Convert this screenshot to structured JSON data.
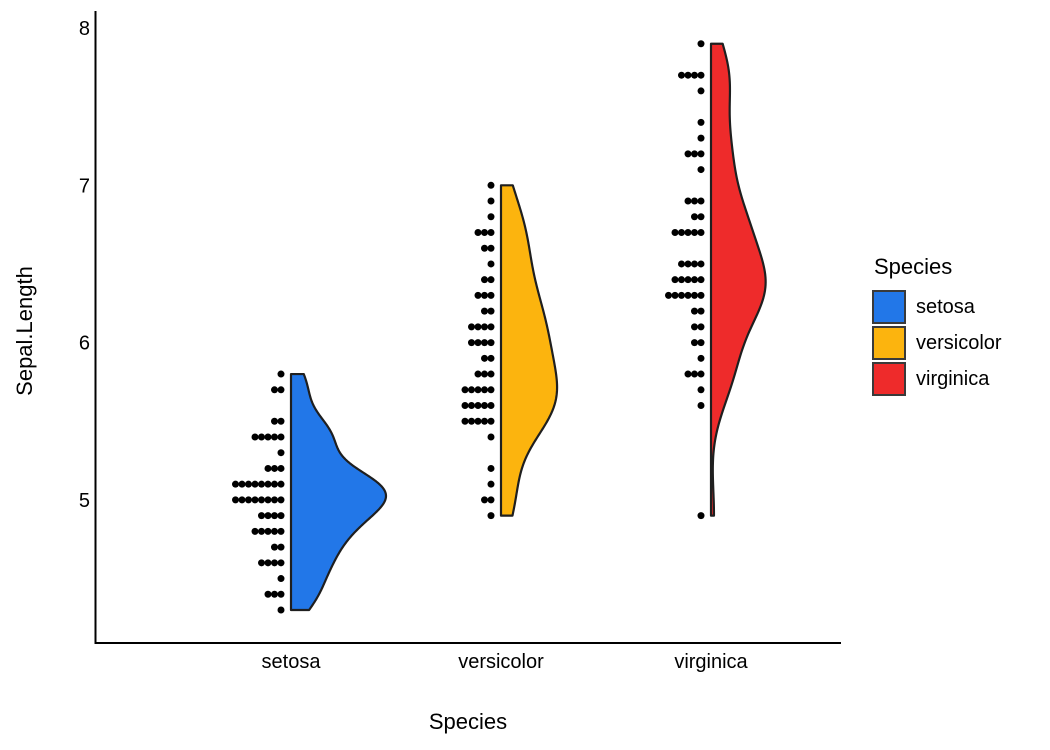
{
  "chart_data": {
    "type": "raincloud (half-violin + stacked dot plot)",
    "title": "",
    "xlabel": "Species",
    "ylabel": "Sepal.Length",
    "categories": [
      "setosa",
      "versicolor",
      "virginica"
    ],
    "y_ticks": [
      5,
      6,
      7,
      8
    ],
    "ylim": [
      4.1,
      8.1
    ],
    "grid": false,
    "dot_color": "#000000",
    "outline_color": "#1f1f1f",
    "axis_color": "#000000",
    "legend": {
      "title": "Species",
      "position": "right",
      "entries": [
        "setosa",
        "versicolor",
        "virginica"
      ]
    },
    "series": [
      {
        "name": "setosa",
        "color": "#2277E8",
        "values": [
          5.1,
          4.9,
          4.7,
          4.6,
          5.0,
          5.4,
          4.6,
          5.0,
          4.4,
          4.9,
          5.4,
          4.8,
          4.8,
          4.3,
          5.8,
          5.7,
          5.4,
          5.1,
          5.7,
          5.1,
          5.4,
          5.1,
          4.6,
          5.1,
          4.8,
          5.0,
          5.0,
          5.2,
          5.2,
          4.7,
          4.8,
          5.4,
          5.2,
          5.5,
          4.9,
          5.0,
          5.5,
          4.9,
          4.4,
          5.1,
          5.0,
          4.5,
          4.4,
          5.0,
          5.1,
          4.8,
          5.1,
          4.6,
          5.3,
          5.0
        ]
      },
      {
        "name": "versicolor",
        "color": "#FCB40E",
        "values": [
          7.0,
          6.4,
          6.9,
          5.5,
          6.5,
          5.7,
          6.3,
          4.9,
          6.6,
          5.2,
          5.0,
          5.9,
          6.0,
          6.1,
          5.6,
          6.7,
          5.6,
          5.8,
          6.2,
          5.6,
          5.9,
          6.1,
          6.3,
          6.1,
          6.4,
          6.6,
          6.8,
          6.7,
          6.0,
          5.7,
          5.5,
          5.5,
          5.8,
          6.0,
          5.4,
          6.0,
          6.7,
          6.3,
          5.6,
          5.5,
          5.5,
          6.1,
          5.8,
          5.0,
          5.6,
          5.7,
          5.7,
          6.2,
          5.1,
          5.7
        ]
      },
      {
        "name": "virginica",
        "color": "#EE2B2B",
        "values": [
          6.3,
          5.8,
          7.1,
          6.3,
          6.5,
          7.6,
          4.9,
          7.3,
          6.7,
          7.2,
          6.5,
          6.4,
          6.8,
          5.7,
          5.8,
          6.4,
          6.5,
          7.7,
          7.7,
          6.0,
          6.9,
          5.6,
          7.7,
          6.3,
          6.7,
          7.2,
          6.2,
          6.1,
          6.4,
          7.2,
          7.4,
          7.9,
          6.4,
          6.3,
          6.1,
          7.7,
          6.3,
          6.4,
          6.0,
          6.9,
          6.7,
          6.9,
          5.8,
          6.8,
          6.7,
          6.7,
          6.3,
          6.5,
          6.2,
          5.9
        ]
      }
    ]
  }
}
